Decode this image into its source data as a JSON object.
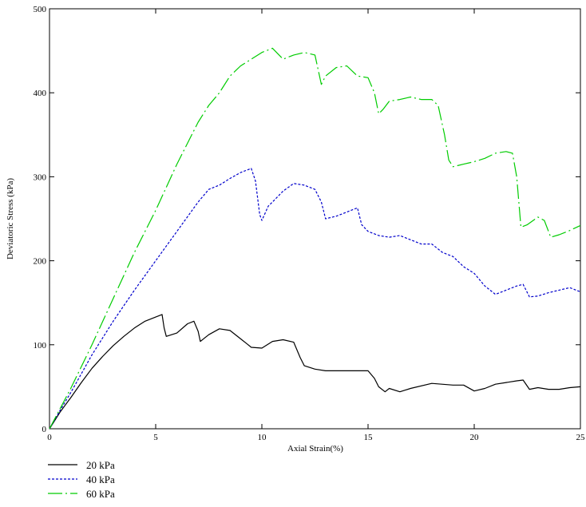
{
  "chart_data": {
    "type": "line",
    "title": "",
    "xlabel": "Axial Strain(%)",
    "ylabel": "Deviatoric Stress (kPa)",
    "xlim": [
      0,
      25
    ],
    "ylim": [
      0,
      500
    ],
    "x_ticks": [
      0,
      5,
      10,
      15,
      20,
      25
    ],
    "y_ticks": [
      0,
      100,
      200,
      300,
      400,
      500
    ],
    "x_tick_labels": [
      "0",
      "5",
      "10",
      "15",
      "20",
      "25"
    ],
    "y_tick_labels": [
      "0",
      "100",
      "200",
      "300",
      "400",
      "500"
    ],
    "grid": false,
    "legend_position": "bottom-left, below plot",
    "series": [
      {
        "name": "20 kPa",
        "color": "#000000",
        "line_style": "solid",
        "x": [
          0,
          0.5,
          1,
          1.5,
          2,
          2.5,
          3,
          3.5,
          4,
          4.5,
          5,
          5.3,
          5.4,
          5.5,
          6,
          6.5,
          6.8,
          7.0,
          7.1,
          7.5,
          8,
          8.5,
          9,
          9.3,
          9.5,
          10,
          10.5,
          11,
          11.5,
          11.8,
          12.0,
          12.5,
          13,
          14,
          15,
          15.3,
          15.5,
          15.8,
          16,
          16.5,
          17,
          18,
          19,
          19.5,
          20,
          20.5,
          21,
          21.5,
          22,
          22.3,
          22.6,
          23,
          23.5,
          24,
          24.5,
          25
        ],
        "y": [
          0,
          20,
          37,
          55,
          72,
          86,
          99,
          110,
          120,
          128,
          133,
          136,
          120,
          110,
          114,
          125,
          128,
          116,
          104,
          112,
          119,
          117,
          107,
          101,
          97,
          96,
          104,
          106,
          103,
          85,
          75,
          71,
          69,
          69,
          69,
          60,
          50,
          44,
          48,
          44,
          48,
          54,
          52,
          52,
          45,
          48,
          53,
          55,
          57,
          58,
          47,
          49,
          47,
          47,
          49,
          50
        ]
      },
      {
        "name": "40 kPa",
        "color": "#0000cc",
        "line_style": "dotted",
        "x": [
          0,
          0.5,
          1,
          2,
          3,
          4,
          5,
          6,
          7,
          7.5,
          8,
          8.5,
          9,
          9.5,
          9.7,
          9.9,
          10.0,
          10.3,
          10.5,
          11,
          11.5,
          12,
          12.5,
          12.8,
          13,
          13.5,
          14,
          14.5,
          14.7,
          15,
          15.5,
          16,
          16.5,
          17,
          17.5,
          18,
          18.5,
          19,
          19.5,
          20,
          20.5,
          21,
          21.5,
          22,
          22.3,
          22.6,
          23,
          23.5,
          24,
          24.5,
          25
        ],
        "y": [
          0,
          22,
          43,
          88,
          128,
          165,
          200,
          235,
          270,
          285,
          290,
          298,
          305,
          310,
          295,
          255,
          248,
          265,
          270,
          283,
          292,
          290,
          285,
          270,
          250,
          253,
          258,
          263,
          243,
          235,
          230,
          228,
          230,
          225,
          220,
          220,
          210,
          205,
          193,
          185,
          170,
          160,
          165,
          170,
          172,
          157,
          158,
          162,
          165,
          168,
          163
        ]
      },
      {
        "name": "60 kPa",
        "color": "#00cc00",
        "line_style": "dash-dot",
        "x": [
          0,
          0.5,
          1,
          2,
          3,
          4,
          5,
          6,
          7,
          7.5,
          8,
          8.5,
          9,
          9.5,
          10,
          10.5,
          11,
          11.5,
          12,
          12.5,
          12.8,
          13.0,
          13.5,
          14,
          14.5,
          15,
          15.3,
          15.5,
          15.7,
          16,
          16.5,
          17,
          17.5,
          18,
          18.3,
          18.6,
          18.8,
          19.0,
          19.5,
          20,
          20.5,
          21,
          21.5,
          21.8,
          22.0,
          22.2,
          22.5,
          23,
          23.3,
          23.6,
          24,
          24.5,
          25
        ],
        "y": [
          0,
          24,
          48,
          100,
          155,
          210,
          260,
          315,
          365,
          385,
          400,
          420,
          432,
          440,
          448,
          453,
          440,
          445,
          448,
          445,
          410,
          420,
          430,
          432,
          420,
          418,
          400,
          375,
          380,
          390,
          392,
          395,
          392,
          392,
          385,
          350,
          320,
          312,
          315,
          318,
          322,
          328,
          330,
          328,
          300,
          240,
          243,
          252,
          248,
          228,
          231,
          236,
          242
        ]
      }
    ]
  }
}
